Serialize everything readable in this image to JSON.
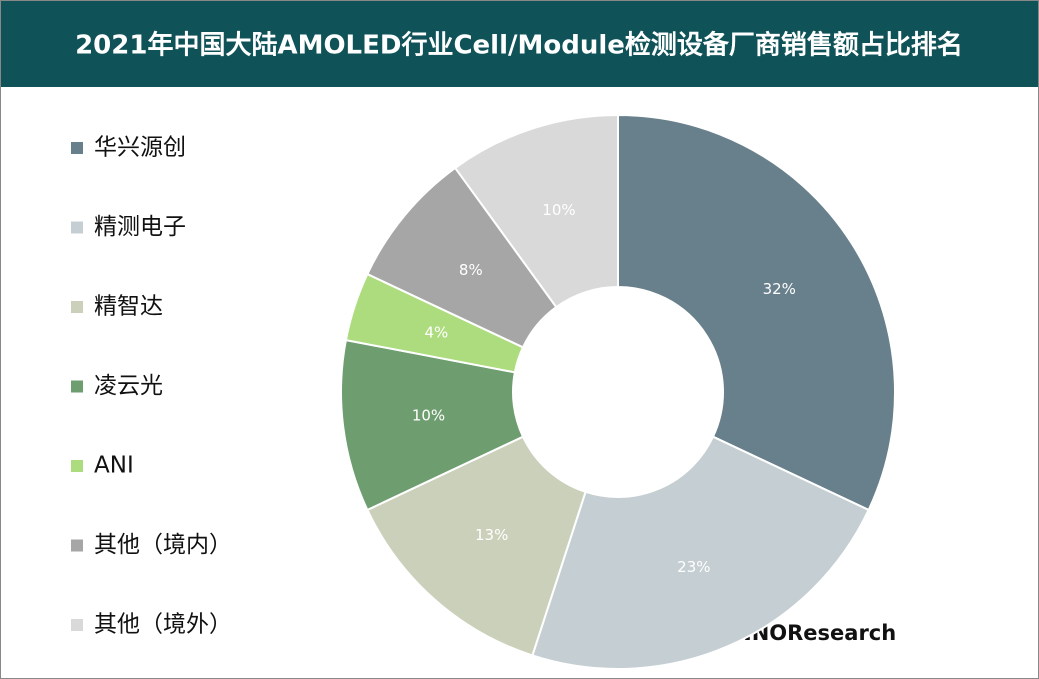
{
  "chart_data": {
    "type": "donut",
    "title": "2021年中国大陆AMOLED行业Cell/Module检测设备厂商销售额占比排名",
    "categories": [
      "华兴源创",
      "精测电子",
      "精智达",
      "凌云光",
      "ANI",
      "其他（境内）",
      "其他（境外）"
    ],
    "values": [
      32,
      23,
      13,
      10,
      4,
      8,
      10
    ],
    "value_labels": [
      "32%",
      "23%",
      "13%",
      "10%",
      "4%",
      "8%",
      "10%"
    ],
    "colors": [
      "#687f8c",
      "#c5cfd3",
      "#cbd0ba",
      "#6e9e70",
      "#addc7e",
      "#a6a6a6",
      "#d9d9d9"
    ],
    "legend": "left",
    "annotation": "Copyright©CINNOResearch"
  }
}
